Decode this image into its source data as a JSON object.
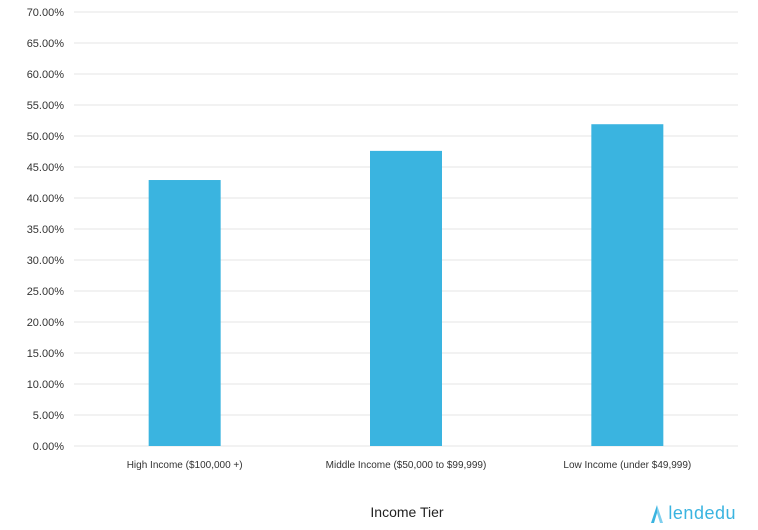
{
  "chart_data": {
    "type": "bar",
    "categories": [
      "High Income ($100,000 +)",
      "Middle Income ($50,000 to $99,999)",
      "Low Income (under $49,999)"
    ],
    "values": [
      42.9,
      47.6,
      51.9
    ],
    "xlabel": "Income Tier",
    "ylabel": "",
    "ylim": [
      0,
      70
    ],
    "ytick_step": 5,
    "ytick_format": "percent-2dp",
    "grid": true,
    "bar_color": "#3ab4e0",
    "grid_color": "#e6e6e6"
  },
  "branding": {
    "logo_text": "lendedu",
    "logo_color": "#3ab4e0",
    "logo_icon": "lendedu-logo-icon"
  }
}
